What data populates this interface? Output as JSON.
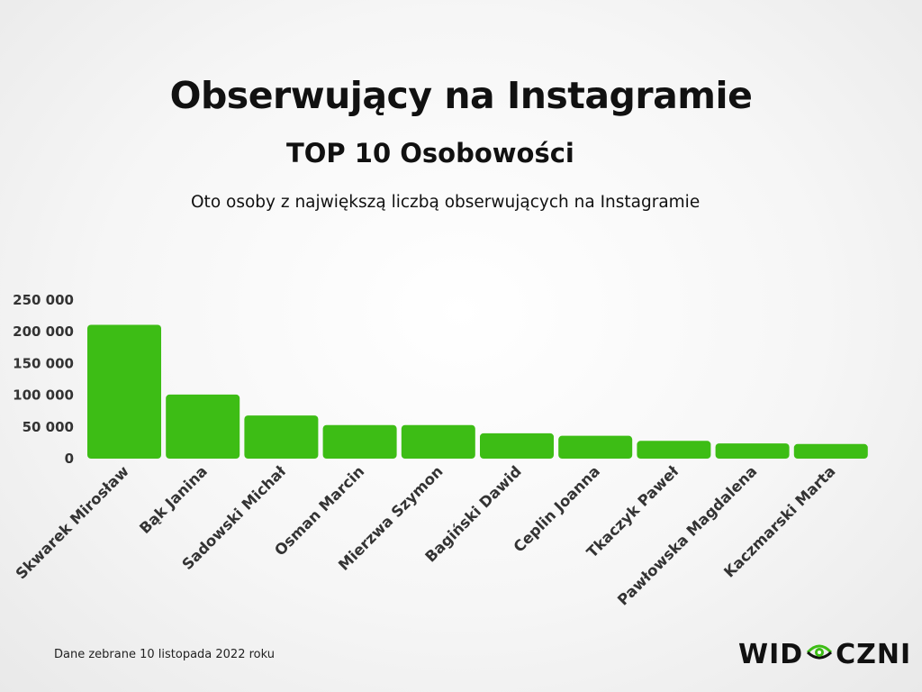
{
  "title": "Obserwujący na Instagramie",
  "subtitle": "TOP 10 Osobowości",
  "description": "Oto osoby z największą liczbą obserwujących na Instagramie",
  "footnote": "Dane zebrane 10 listopada 2022 roku",
  "logo": {
    "part1": "WID",
    "part2": "CZNI"
  },
  "colors": {
    "bar": "#3dbd15",
    "accent": "#3dbd15",
    "text": "#111111"
  },
  "chart_data": {
    "type": "bar",
    "title": "Obserwujący na Instagramie",
    "xlabel": "",
    "ylabel": "",
    "ylim": [
      0,
      250000
    ],
    "yticks": [
      0,
      50000,
      100000,
      150000,
      200000,
      250000
    ],
    "ytick_labels": [
      "0",
      "50 000",
      "100 000",
      "150 000",
      "200 000",
      "250 000"
    ],
    "grid": false,
    "categories": [
      "Skwarek Mirosław",
      "Bąk Janina",
      "Sadowski Michał",
      "Osman Marcin",
      "Mierzwa Szymon",
      "Bagiński Dawid",
      "Ceplin Joanna",
      "Tkaczyk Paweł",
      "Pawłowska Magdalena",
      "Kaczmarski Marta"
    ],
    "values": [
      211000,
      101000,
      68000,
      53000,
      53000,
      40000,
      36000,
      28000,
      24000,
      23000
    ]
  }
}
